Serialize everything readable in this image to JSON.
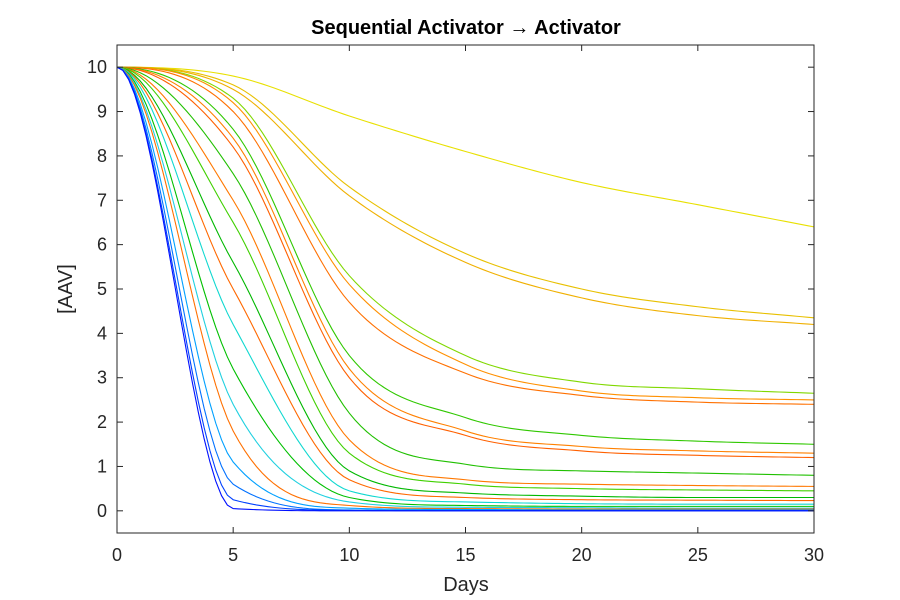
{
  "chart_data": {
    "type": "line",
    "title": "Sequential Activator → Activator",
    "xlabel": "Days",
    "ylabel": "[AAV]",
    "xlim": [
      0,
      30
    ],
    "ylim": [
      -0.5,
      10.5
    ],
    "xticks": [
      0,
      5,
      10,
      15,
      20,
      25,
      30
    ],
    "yticks": [
      0,
      1,
      2,
      3,
      4,
      5,
      6,
      7,
      8,
      9,
      10
    ],
    "grid": false,
    "legend": "none",
    "initial_value": 10,
    "colors": {
      "axis": "#262626",
      "title": "#000000",
      "series_palette": [
        "#0010ff",
        "#0050ff",
        "#00a0ff",
        "#10d8d0",
        "#00c000",
        "#40d000",
        "#70d800",
        "#ff7000",
        "#ffa000",
        "#e8e000"
      ]
    },
    "series": [
      {
        "color": "#e8e000",
        "values_at_days": {
          "0": 10,
          "5": 9.8,
          "10": 8.9,
          "15": 8.1,
          "20": 7.4,
          "25": 6.9,
          "30": 6.4
        }
      },
      {
        "color": "#e8c000",
        "values_at_days": {
          "0": 10,
          "5": 9.6,
          "10": 7.3,
          "15": 5.8,
          "20": 5.0,
          "25": 4.6,
          "30": 4.35
        }
      },
      {
        "color": "#f0b000",
        "values_at_days": {
          "0": 10,
          "5": 9.5,
          "10": 7.1,
          "15": 5.6,
          "20": 4.8,
          "25": 4.4,
          "30": 4.2
        }
      },
      {
        "color": "#80d800",
        "values_at_days": {
          "0": 10,
          "5": 9.3,
          "10": 5.3,
          "15": 3.5,
          "20": 2.9,
          "25": 2.75,
          "30": 2.65
        }
      },
      {
        "color": "#ff9000",
        "values_at_days": {
          "0": 10,
          "5": 9.2,
          "10": 5.1,
          "15": 3.3,
          "20": 2.7,
          "25": 2.55,
          "30": 2.5
        }
      },
      {
        "color": "#ff7000",
        "values_at_days": {
          "0": 10,
          "5": 9.0,
          "10": 4.7,
          "15": 3.1,
          "20": 2.6,
          "25": 2.45,
          "30": 2.4
        }
      },
      {
        "color": "#30c800",
        "values_at_days": {
          "0": 10,
          "5": 8.6,
          "10": 3.5,
          "15": 2.1,
          "20": 1.7,
          "25": 1.57,
          "30": 1.5
        }
      },
      {
        "color": "#ff8000",
        "values_at_days": {
          "0": 10,
          "5": 8.4,
          "10": 3.2,
          "15": 1.8,
          "20": 1.45,
          "25": 1.35,
          "30": 1.3
        }
      },
      {
        "color": "#ff6000",
        "values_at_days": {
          "0": 10,
          "5": 8.2,
          "10": 3.0,
          "15": 1.7,
          "20": 1.35,
          "25": 1.25,
          "30": 1.2
        }
      },
      {
        "color": "#20c000",
        "values_at_days": {
          "0": 10,
          "5": 7.6,
          "10": 2.2,
          "15": 1.05,
          "20": 0.9,
          "25": 0.85,
          "30": 0.8
        }
      },
      {
        "color": "#ff7800",
        "values_at_days": {
          "0": 10,
          "5": 7.0,
          "10": 1.6,
          "15": 0.7,
          "20": 0.6,
          "25": 0.57,
          "30": 0.55
        }
      },
      {
        "color": "#40d000",
        "values_at_days": {
          "0": 10,
          "5": 6.5,
          "10": 1.3,
          "15": 0.6,
          "20": 0.5,
          "25": 0.47,
          "30": 0.45
        }
      },
      {
        "color": "#00b800",
        "values_at_days": {
          "0": 10,
          "5": 5.6,
          "10": 0.9,
          "15": 0.4,
          "20": 0.33,
          "25": 0.3,
          "30": 0.3
        }
      },
      {
        "color": "#ff6800",
        "values_at_days": {
          "0": 10,
          "5": 5.0,
          "10": 0.7,
          "15": 0.3,
          "20": 0.25,
          "25": 0.24,
          "30": 0.23
        }
      },
      {
        "color": "#10d8d0",
        "values_at_days": {
          "0": 10,
          "5": 4.2,
          "10": 0.45,
          "15": 0.2,
          "20": 0.16,
          "25": 0.15,
          "30": 0.15
        }
      },
      {
        "color": "#00c000",
        "values_at_days": {
          "0": 10,
          "5": 3.2,
          "10": 0.3,
          "15": 0.12,
          "20": 0.1,
          "25": 0.1,
          "30": 0.1
        }
      },
      {
        "color": "#20d0e0",
        "values_at_days": {
          "0": 10,
          "5": 2.4,
          "10": 0.2,
          "15": 0.08,
          "20": 0.07,
          "25": 0.06,
          "30": 0.06
        }
      },
      {
        "color": "#ff7000",
        "values_at_days": {
          "0": 10,
          "5": 1.8,
          "10": 0.12,
          "15": 0.05,
          "20": 0.04,
          "25": 0.04,
          "30": 0.04
        }
      },
      {
        "color": "#00a0ff",
        "values_at_days": {
          "0": 10,
          "5": 1.1,
          "10": 0.06,
          "15": 0.03,
          "20": 0.02,
          "25": 0.02,
          "30": 0.02
        }
      },
      {
        "color": "#0070ff",
        "values_at_days": {
          "0": 10,
          "5": 0.6,
          "10": 0.02,
          "15": 0.01,
          "20": 0.01,
          "25": 0.01,
          "30": 0.01
        }
      },
      {
        "color": "#0040ff",
        "values_at_days": {
          "0": 10,
          "5": 0.25,
          "10": 0.01,
          "15": 0,
          "20": 0,
          "25": 0,
          "30": 0
        }
      },
      {
        "color": "#0010ff",
        "values_at_days": {
          "0": 10,
          "5": 0.05,
          "10": 0,
          "15": 0,
          "20": 0,
          "25": 0,
          "30": 0
        }
      }
    ]
  }
}
